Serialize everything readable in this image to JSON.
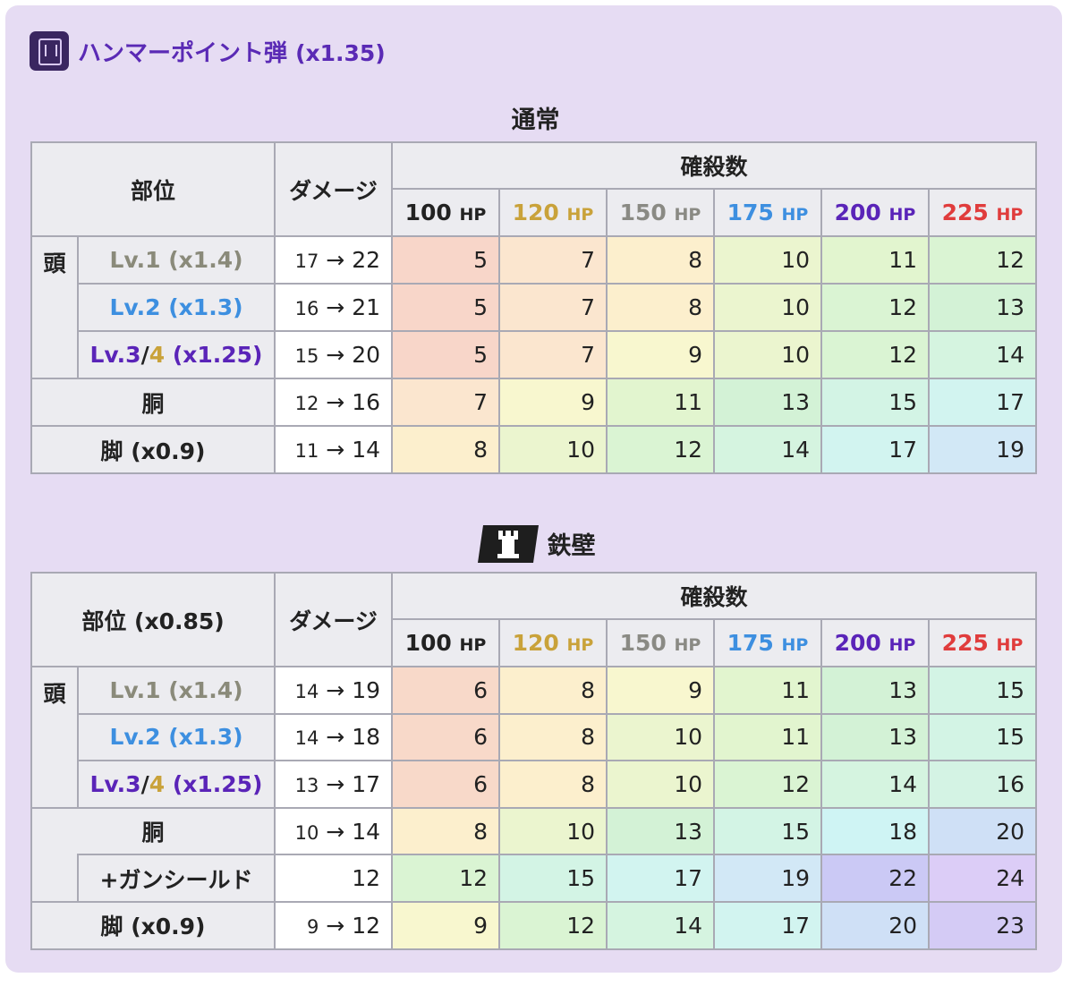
{
  "weapon": {
    "title": "ハンマーポイント弾",
    "multiplier": "(x1.35)"
  },
  "hp_levels": [
    {
      "value": "100",
      "unit": "HP",
      "color": "#222222"
    },
    {
      "value": "120",
      "unit": "HP",
      "color": "#c9a23a"
    },
    {
      "value": "150",
      "unit": "HP",
      "color": "#8a8a84"
    },
    {
      "value": "175",
      "unit": "HP",
      "color": "#3d8fe0"
    },
    {
      "value": "200",
      "unit": "HP",
      "color": "#5a24b8"
    },
    {
      "value": "225",
      "unit": "HP",
      "color": "#e03c3c"
    }
  ],
  "normal": {
    "label": "通常",
    "header_part": "部位",
    "header_damage": "ダメージ",
    "header_kills": "確殺数",
    "head_label": "頭",
    "rows": [
      {
        "group": "head",
        "label": "Lv.1 (x1.4)",
        "style": "gray",
        "dmg_from": "17",
        "dmg_to": "22",
        "kills": [
          "5",
          "7",
          "8",
          "10",
          "11",
          "12"
        ]
      },
      {
        "group": "head",
        "label": "Lv.2 (x1.3)",
        "style": "blue",
        "dmg_from": "16",
        "dmg_to": "21",
        "kills": [
          "5",
          "7",
          "8",
          "10",
          "12",
          "13"
        ]
      },
      {
        "group": "head",
        "label_a": "Lv.3",
        "label_sep": "/",
        "label_b": "4",
        "label_c": " (x1.25)",
        "style": "lv34",
        "dmg_from": "15",
        "dmg_to": "20",
        "kills": [
          "5",
          "7",
          "9",
          "10",
          "12",
          "14"
        ]
      },
      {
        "group": "body",
        "label": "胴",
        "dmg_from": "12",
        "dmg_to": "16",
        "kills": [
          "7",
          "9",
          "11",
          "13",
          "15",
          "17"
        ]
      },
      {
        "group": "legs",
        "label": "脚 (x0.9)",
        "dmg_from": "11",
        "dmg_to": "14",
        "kills": [
          "8",
          "10",
          "12",
          "14",
          "17",
          "19"
        ]
      }
    ]
  },
  "fortified": {
    "label": "鉄壁",
    "header_part": "部位 (x0.85)",
    "header_damage": "ダメージ",
    "header_kills": "確殺数",
    "head_label": "頭",
    "rows": [
      {
        "group": "head",
        "label": "Lv.1 (x1.4)",
        "style": "gray",
        "dmg_from": "14",
        "dmg_to": "19",
        "kills": [
          "6",
          "8",
          "9",
          "11",
          "13",
          "15"
        ]
      },
      {
        "group": "head",
        "label": "Lv.2 (x1.3)",
        "style": "blue",
        "dmg_from": "14",
        "dmg_to": "18",
        "kills": [
          "6",
          "8",
          "10",
          "11",
          "13",
          "15"
        ]
      },
      {
        "group": "head",
        "label_a": "Lv.3",
        "label_sep": "/",
        "label_b": "4",
        "label_c": " (x1.25)",
        "style": "lv34",
        "dmg_from": "13",
        "dmg_to": "17",
        "kills": [
          "6",
          "8",
          "10",
          "12",
          "14",
          "16"
        ]
      },
      {
        "group": "body",
        "label": "胴",
        "dmg_from": "10",
        "dmg_to": "14",
        "kills": [
          "8",
          "10",
          "13",
          "15",
          "18",
          "20"
        ]
      },
      {
        "group": "shield",
        "label": "+ガンシールド",
        "dmg_single": "12",
        "kills": [
          "12",
          "15",
          "17",
          "19",
          "22",
          "24"
        ]
      },
      {
        "group": "legs",
        "label": "脚 (x0.9)",
        "dmg_from": "9",
        "dmg_to": "12",
        "kills": [
          "9",
          "12",
          "14",
          "17",
          "20",
          "23"
        ]
      }
    ]
  },
  "kill_colors": {
    "5": "#f8d6c9",
    "6": "#f8d9c9",
    "7": "#fbe6cf",
    "8": "#fcefcd",
    "9": "#f8f7cf",
    "10": "#ebf5cf",
    "11": "#e2f5cf",
    "12": "#daf4d3",
    "13": "#d3f2d6",
    "14": "#d5f4e0",
    "15": "#d3f4e5",
    "16": "#d4f3e4",
    "17": "#d2f4f0",
    "18": "#cff4f4",
    "19": "#d2e8f6",
    "20": "#cfe0f6",
    "22": "#cbc9f5",
    "23": "#d4cbf5",
    "24": "#dccdf7"
  }
}
